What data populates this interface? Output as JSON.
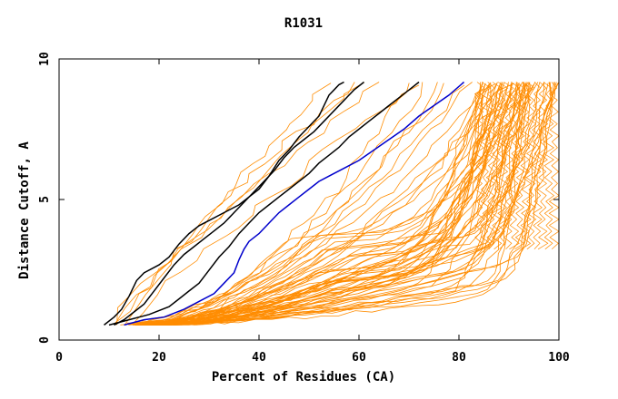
{
  "chart_data": {
    "type": "line",
    "title": "R1031",
    "xlabel": "Percent of Residues (CA)",
    "ylabel": "Distance Cutoff, A",
    "xlim": [
      0,
      100
    ],
    "ylim": [
      0,
      10
    ],
    "xticks": [
      "0",
      "20",
      "40",
      "60",
      "80",
      "100"
    ],
    "yticks": [
      "0",
      "5",
      "10"
    ],
    "grid": false,
    "legend": "none",
    "colors": {
      "black": "#000000",
      "blue": "#0000cc",
      "orange": "#ff8c00"
    },
    "series": [
      {
        "color": "black",
        "x": [
          9,
          11,
          12.5,
          14,
          15.5,
          17,
          20,
          22,
          24,
          26,
          28,
          30,
          33,
          36,
          38,
          40,
          42,
          44,
          46,
          48,
          50,
          52,
          53,
          54,
          55,
          56,
          57
        ],
        "y": [
          0.3,
          0.6,
          0.9,
          1.4,
          2.0,
          2.3,
          2.6,
          2.9,
          3.4,
          3.8,
          4.1,
          4.3,
          4.6,
          4.9,
          5.2,
          5.5,
          6.0,
          6.6,
          7.0,
          7.5,
          7.9,
          8.3,
          8.7,
          9.1,
          9.3,
          9.5,
          9.6
        ]
      },
      {
        "color": "black",
        "x": [
          11,
          13,
          15,
          17,
          19,
          21,
          23,
          25,
          27,
          29,
          31,
          33,
          35,
          37,
          39,
          41,
          43,
          45,
          47,
          49,
          51,
          53,
          55,
          57,
          59,
          61
        ],
        "y": [
          0.3,
          0.5,
          0.8,
          1.1,
          1.6,
          2.1,
          2.6,
          3.0,
          3.3,
          3.6,
          3.9,
          4.2,
          4.6,
          5.0,
          5.4,
          5.8,
          6.2,
          6.7,
          7.1,
          7.4,
          7.7,
          8.1,
          8.5,
          8.9,
          9.3,
          9.6
        ]
      },
      {
        "color": "black",
        "x": [
          10,
          14,
          18,
          22,
          24,
          26,
          28,
          30,
          32,
          34,
          36,
          38,
          40,
          42,
          44,
          46,
          48,
          50,
          52,
          54,
          56,
          58,
          60,
          62,
          64,
          66,
          68,
          70,
          72
        ],
        "y": [
          0.3,
          0.5,
          0.7,
          1.0,
          1.3,
          1.6,
          1.9,
          2.4,
          2.9,
          3.3,
          3.8,
          4.2,
          4.6,
          4.9,
          5.2,
          5.5,
          5.8,
          6.1,
          6.5,
          6.8,
          7.1,
          7.5,
          7.8,
          8.1,
          8.4,
          8.7,
          9.0,
          9.3,
          9.6
        ]
      },
      {
        "color": "blue",
        "x": [
          13,
          17,
          21,
          25,
          28,
          31,
          33,
          35,
          36,
          37,
          38,
          40,
          42,
          44,
          46,
          48,
          50,
          52,
          54,
          57,
          60,
          63,
          66,
          69,
          72,
          75,
          78,
          81
        ],
        "y": [
          0.3,
          0.5,
          0.6,
          0.9,
          1.2,
          1.5,
          1.9,
          2.3,
          2.8,
          3.2,
          3.5,
          3.8,
          4.2,
          4.6,
          4.9,
          5.2,
          5.5,
          5.8,
          6.0,
          6.3,
          6.6,
          7.0,
          7.4,
          7.8,
          8.3,
          8.7,
          9.1,
          9.6
        ]
      }
    ]
  }
}
